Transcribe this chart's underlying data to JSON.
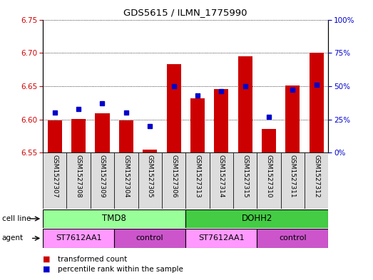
{
  "title": "GDS5615 / ILMN_1775990",
  "samples": [
    "GSM1527307",
    "GSM1527308",
    "GSM1527309",
    "GSM1527304",
    "GSM1527305",
    "GSM1527306",
    "GSM1527313",
    "GSM1527314",
    "GSM1527315",
    "GSM1527310",
    "GSM1527311",
    "GSM1527312"
  ],
  "red_values": [
    6.598,
    6.601,
    6.609,
    6.598,
    6.554,
    6.683,
    6.632,
    6.646,
    6.695,
    6.586,
    6.651,
    6.7
  ],
  "blue_values_pct": [
    30,
    33,
    37,
    30,
    20,
    50,
    43,
    46,
    50,
    27,
    47,
    51
  ],
  "ylim_left": [
    6.55,
    6.75
  ],
  "ylim_right": [
    0,
    100
  ],
  "yticks_left": [
    6.55,
    6.6,
    6.65,
    6.7,
    6.75
  ],
  "yticks_right": [
    0,
    25,
    50,
    75,
    100
  ],
  "bar_bottom": 6.55,
  "bar_color": "#cc0000",
  "blue_color": "#0000cc",
  "bg_color": "#ffffff",
  "tick_color_left": "#cc0000",
  "tick_color_right": "#0000cc",
  "cell_line_tmd8_color": "#99ff99",
  "cell_line_dohh2_color": "#44cc44",
  "agent_st_color": "#ff99ff",
  "agent_ctrl_color": "#cc55cc",
  "sample_bg_color": "#dddddd",
  "blue_marker_size": 5
}
